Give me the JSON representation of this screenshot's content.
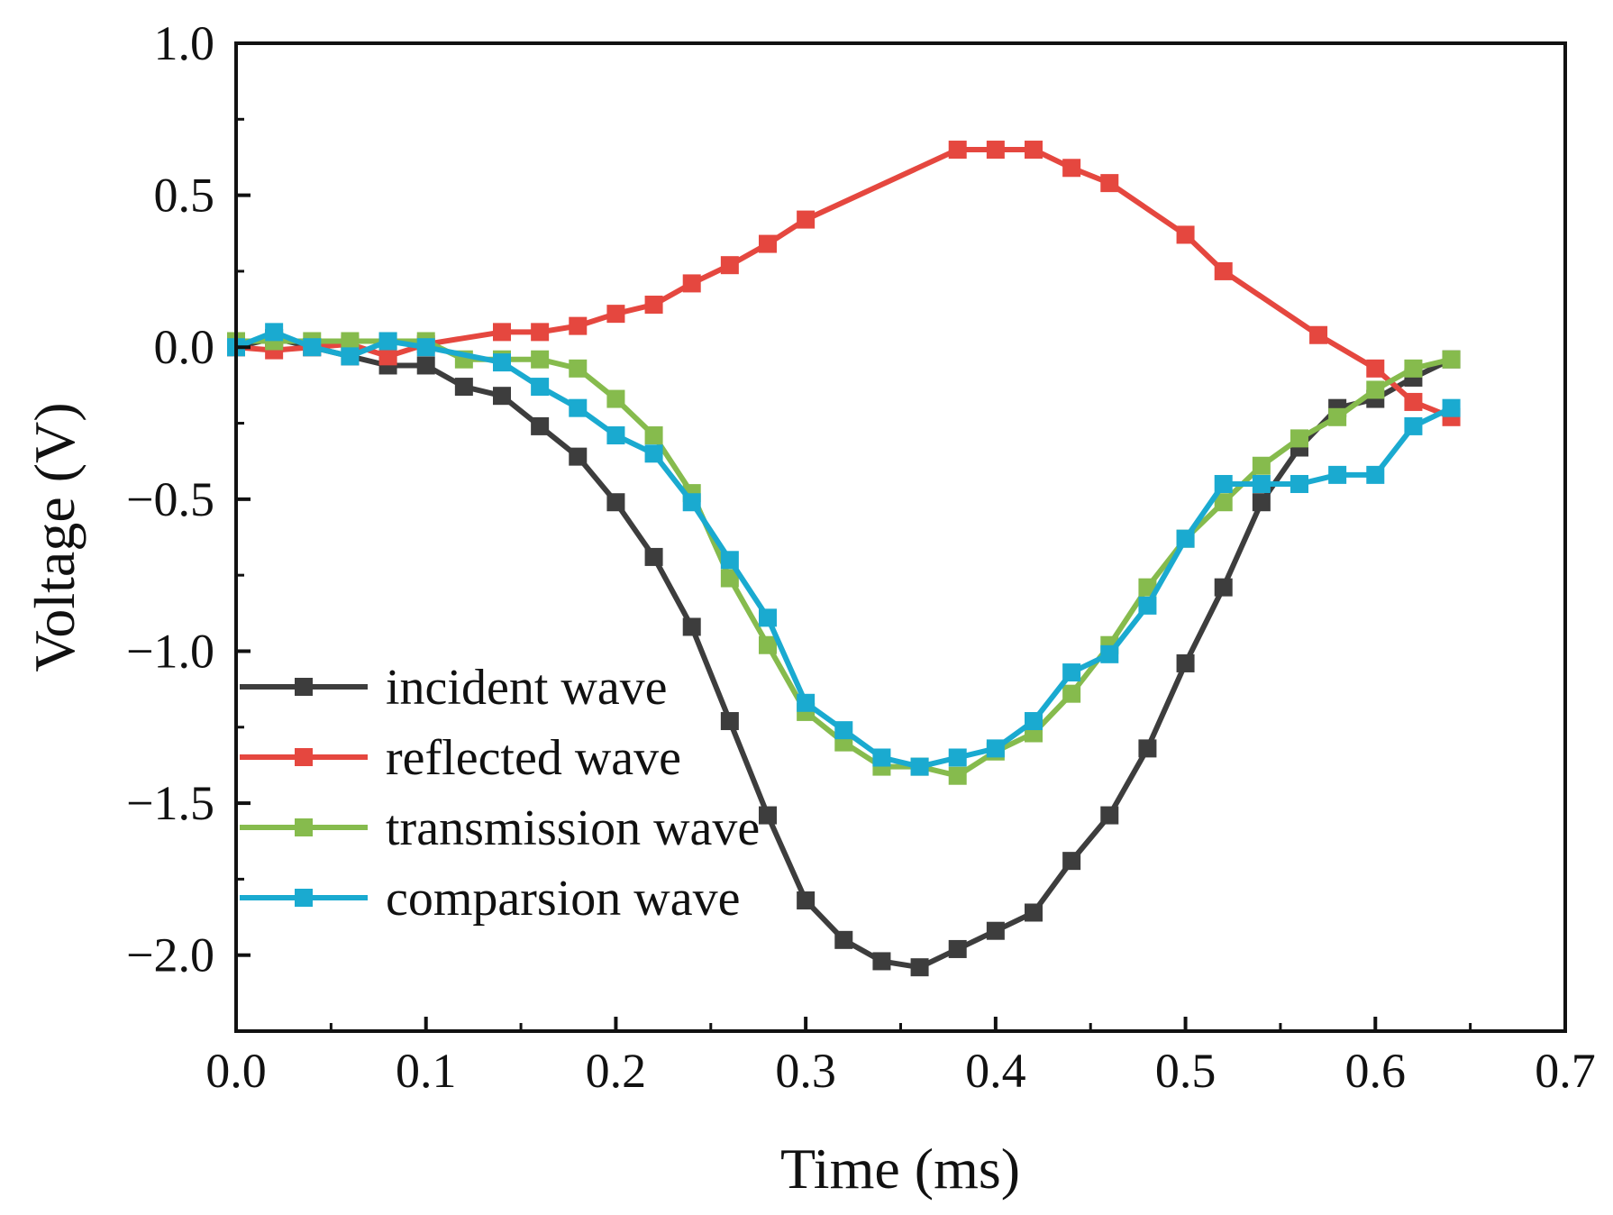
{
  "chart_data": {
    "type": "line",
    "title": "",
    "xlabel": "Time (ms)",
    "ylabel": "Voltage (V)",
    "xlim": [
      0.0,
      0.7
    ],
    "ylim": [
      -2.25,
      1.0
    ],
    "xticks": [
      0.0,
      0.1,
      0.2,
      0.3,
      0.4,
      0.5,
      0.6,
      0.7
    ],
    "yticks": [
      1.0,
      0.5,
      0.0,
      -0.5,
      -1.0,
      -1.5,
      -2.0
    ],
    "xtick_labels": [
      "0.0",
      "0.1",
      "0.2",
      "0.3",
      "0.4",
      "0.5",
      "0.6",
      "0.7"
    ],
    "ytick_labels": [
      "1.0",
      "0.5",
      "0.0",
      "−0.5",
      "−1.0",
      "−1.5",
      "−2.0"
    ],
    "grid": false,
    "legend_position": "bottom-left",
    "series": [
      {
        "name": "incident wave",
        "color": "#3d3d3d",
        "x": [
          0.0,
          0.02,
          0.04,
          0.06,
          0.08,
          0.1,
          0.12,
          0.14,
          0.16,
          0.18,
          0.2,
          0.22,
          0.24,
          0.26,
          0.28,
          0.3,
          0.32,
          0.34,
          0.36,
          0.38,
          0.4,
          0.42,
          0.44,
          0.46,
          0.48,
          0.5,
          0.52,
          0.54,
          0.56,
          0.58,
          0.6,
          0.62,
          0.64
        ],
        "y": [
          0.0,
          0.03,
          0.0,
          -0.03,
          -0.06,
          -0.06,
          -0.13,
          -0.16,
          -0.26,
          -0.36,
          -0.51,
          -0.69,
          -0.92,
          -1.23,
          -1.54,
          -1.82,
          -1.95,
          -2.02,
          -2.04,
          -1.98,
          -1.92,
          -1.86,
          -1.69,
          -1.54,
          -1.32,
          -1.04,
          -0.79,
          -0.51,
          -0.33,
          -0.2,
          -0.17,
          -0.1,
          -0.04
        ]
      },
      {
        "name": "reflected wave",
        "color": "#e5473f",
        "x": [
          0.0,
          0.02,
          0.04,
          0.06,
          0.08,
          0.1,
          0.14,
          0.16,
          0.18,
          0.2,
          0.22,
          0.24,
          0.26,
          0.28,
          0.3,
          0.38,
          0.4,
          0.42,
          0.44,
          0.46,
          0.5,
          0.52,
          0.57,
          0.6,
          0.62,
          0.64
        ],
        "y": [
          0.0,
          -0.01,
          0.0,
          0.01,
          -0.03,
          0.01,
          0.05,
          0.05,
          0.07,
          0.11,
          0.14,
          0.21,
          0.27,
          0.34,
          0.42,
          0.65,
          0.65,
          0.65,
          0.59,
          0.54,
          0.37,
          0.25,
          0.04,
          -0.07,
          -0.18,
          -0.23
        ]
      },
      {
        "name": "transmission wave",
        "color": "#86bb4d",
        "x": [
          0.0,
          0.02,
          0.04,
          0.06,
          0.08,
          0.1,
          0.12,
          0.14,
          0.16,
          0.18,
          0.2,
          0.22,
          0.24,
          0.26,
          0.28,
          0.3,
          0.32,
          0.34,
          0.36,
          0.38,
          0.4,
          0.42,
          0.44,
          0.46,
          0.48,
          0.5,
          0.52,
          0.54,
          0.56,
          0.58,
          0.6,
          0.62,
          0.64
        ],
        "y": [
          0.02,
          0.02,
          0.02,
          0.02,
          0.02,
          0.02,
          -0.04,
          -0.04,
          -0.04,
          -0.07,
          -0.17,
          -0.29,
          -0.48,
          -0.76,
          -0.98,
          -1.2,
          -1.3,
          -1.38,
          -1.38,
          -1.41,
          -1.33,
          -1.27,
          -1.14,
          -0.98,
          -0.79,
          -0.63,
          -0.51,
          -0.39,
          -0.3,
          -0.23,
          -0.14,
          -0.07,
          -0.04
        ]
      },
      {
        "name": "comparsion wave",
        "color": "#1aaad0",
        "x": [
          0.0,
          0.02,
          0.04,
          0.06,
          0.08,
          0.1,
          0.14,
          0.16,
          0.18,
          0.2,
          0.22,
          0.24,
          0.26,
          0.28,
          0.3,
          0.32,
          0.34,
          0.36,
          0.38,
          0.4,
          0.42,
          0.44,
          0.46,
          0.48,
          0.5,
          0.52,
          0.54,
          0.56,
          0.58,
          0.6,
          0.62,
          0.64
        ],
        "y": [
          0.0,
          0.05,
          0.0,
          -0.03,
          0.02,
          0.0,
          -0.05,
          -0.13,
          -0.2,
          -0.29,
          -0.35,
          -0.51,
          -0.7,
          -0.89,
          -1.17,
          -1.26,
          -1.35,
          -1.38,
          -1.35,
          -1.32,
          -1.23,
          -1.07,
          -1.01,
          -0.85,
          -0.63,
          -0.45,
          -0.45,
          -0.45,
          -0.42,
          -0.42,
          -0.26,
          -0.2
        ]
      }
    ]
  }
}
